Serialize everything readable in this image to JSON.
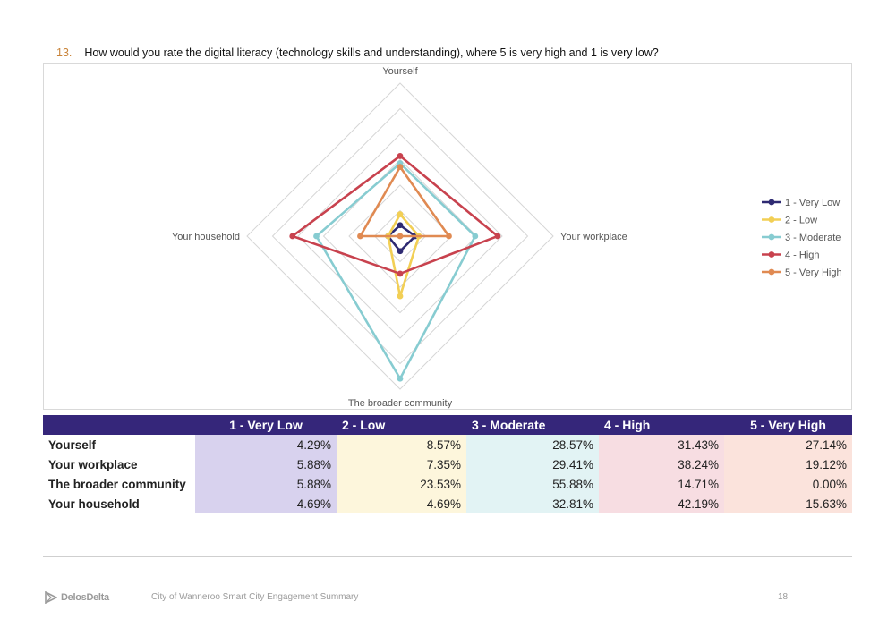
{
  "question": {
    "number": "13.",
    "text": "How would you rate the digital literacy (technology skills and understanding), where 5 is very high and 1 is very low?"
  },
  "chart_data": {
    "type": "radar",
    "axes": [
      "Yourself",
      "Your workplace",
      "The broader community",
      "Your household"
    ],
    "rlim": [
      0,
      60
    ],
    "grid": true,
    "legend_position": "right",
    "series": [
      {
        "name": "1 - Very Low",
        "color": "#2e2a72",
        "values": [
          4.29,
          5.88,
          5.88,
          4.69
        ]
      },
      {
        "name": "2 - Low",
        "color": "#f2cf55",
        "values": [
          8.57,
          7.35,
          23.53,
          4.69
        ]
      },
      {
        "name": "3 - Moderate",
        "color": "#87ccd1",
        "values": [
          28.57,
          29.41,
          55.88,
          32.81
        ]
      },
      {
        "name": "4 - High",
        "color": "#c8424e",
        "values": [
          31.43,
          38.24,
          14.71,
          42.19
        ]
      },
      {
        "name": "5 - Very High",
        "color": "#e08a52",
        "values": [
          27.14,
          19.12,
          0.0,
          15.63
        ]
      }
    ]
  },
  "table": {
    "headers": [
      "",
      "1 - Very Low",
      "2 - Low",
      "3 - Moderate",
      "4 - High",
      "5 - Very High"
    ],
    "rows": [
      {
        "label": "Yourself",
        "values": [
          "4.29%",
          "8.57%",
          "28.57%",
          "31.43%",
          "27.14%"
        ]
      },
      {
        "label": "Your workplace",
        "values": [
          "5.88%",
          "7.35%",
          "29.41%",
          "38.24%",
          "19.12%"
        ]
      },
      {
        "label": "The broader community",
        "values": [
          "5.88%",
          "23.53%",
          "55.88%",
          "14.71%",
          "0.00%"
        ]
      },
      {
        "label": "Your household",
        "values": [
          "4.69%",
          "4.69%",
          "32.81%",
          "42.19%",
          "15.63%"
        ]
      }
    ]
  },
  "footer": {
    "logo_text": "DelosDelta",
    "document_title": "City of Wanneroo Smart City Engagement Summary",
    "page_number": "18"
  }
}
